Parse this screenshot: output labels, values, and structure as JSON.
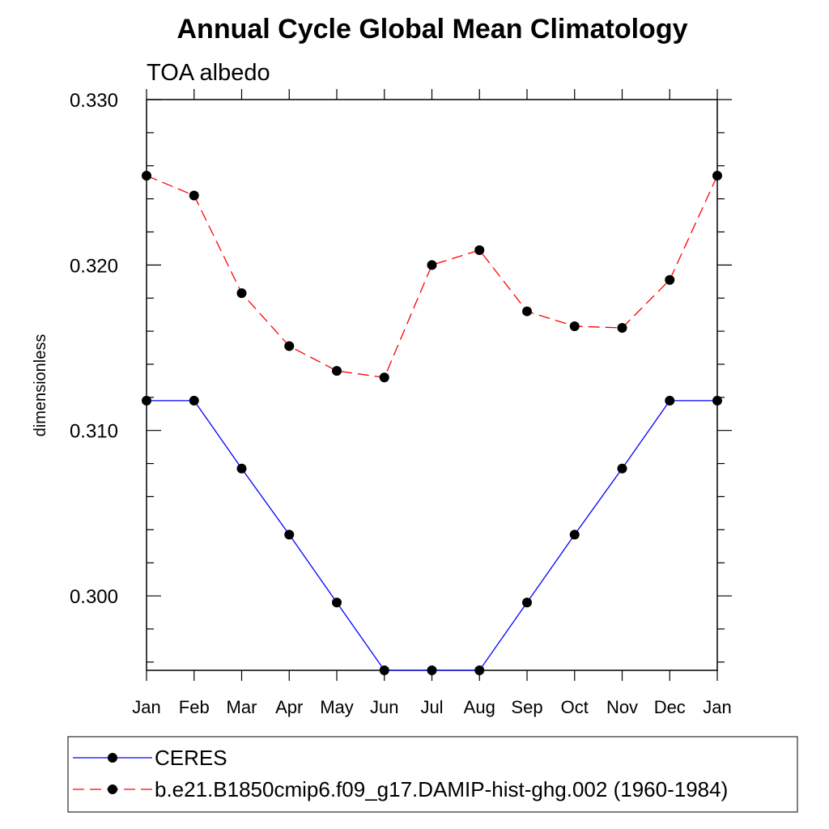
{
  "chart_data": {
    "type": "line",
    "title": "Annual Cycle Global Mean Climatology",
    "subtitle": "TOA albedo",
    "xlabel": "",
    "ylabel": "dimensionless",
    "categories": [
      "Jan",
      "Feb",
      "Mar",
      "Apr",
      "May",
      "Jun",
      "Jul",
      "Aug",
      "Sep",
      "Oct",
      "Nov",
      "Dec",
      "Jan"
    ],
    "yticks": [
      "0.300",
      "0.310",
      "0.320",
      "0.330"
    ],
    "ylim": [
      0.2955,
      0.33
    ],
    "grid": false,
    "legend_position": "bottom",
    "series": [
      {
        "name": "CERES",
        "color": "#0000ff",
        "line_style": "solid",
        "marker": "filled-circle",
        "values": [
          0.3118,
          0.3118,
          0.3077,
          0.3037,
          0.2996,
          0.2955,
          0.2955,
          0.2955,
          0.2996,
          0.3037,
          0.3077,
          0.3118,
          0.3118
        ]
      },
      {
        "name": "b.e21.B1850cmip6.f09_g17.DAMIP-hist-ghg.002 (1960-1984)",
        "color": "#ff0000",
        "line_style": "dashed",
        "marker": "filled-circle",
        "values": [
          0.3254,
          0.3242,
          0.3183,
          0.3151,
          0.3136,
          0.3132,
          0.32,
          0.3209,
          0.3172,
          0.3163,
          0.3162,
          0.3191,
          0.3254
        ]
      }
    ]
  }
}
